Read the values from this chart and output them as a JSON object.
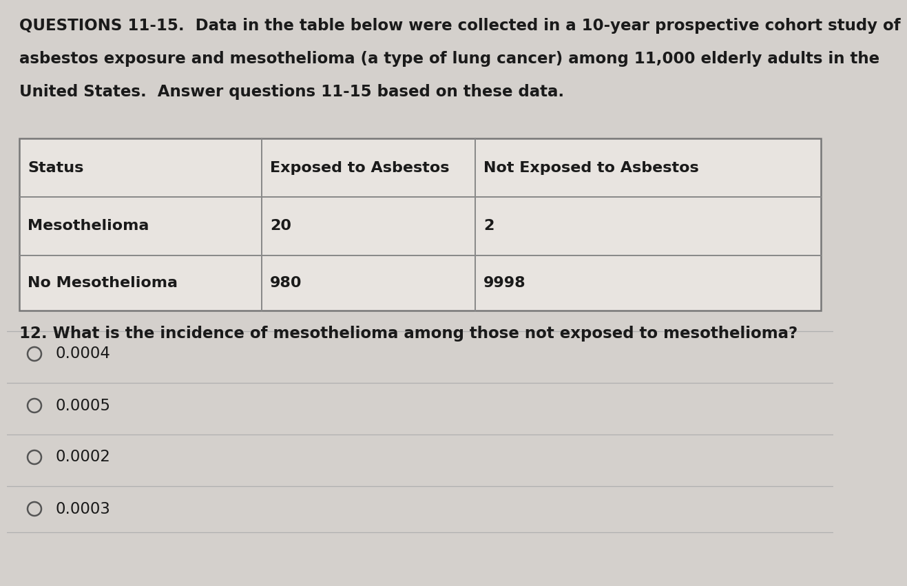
{
  "background_color": "#d4d0cc",
  "title_line1": "QUESTIONS 11-15.  Data in the table below were collected in a 10-year prospective cohort study of",
  "title_line2": "asbestos exposure and mesothelioma (a type of lung cancer) among 11,000 elderly adults in the",
  "title_line3": "United States.  Answer questions 11-15 based on these data.",
  "table_headers": [
    "Status",
    "Exposed to Asbestos",
    "Not Exposed to Asbestos"
  ],
  "table_rows": [
    [
      "Mesothelioma",
      "20",
      "2"
    ],
    [
      "No Mesothelioma",
      "980",
      "9998"
    ]
  ],
  "question": "12. What is the incidence of mesothelioma among those not exposed to mesothelioma?",
  "options": [
    "0.0004",
    "0.0005",
    "0.0002",
    "0.0003"
  ],
  "text_color": "#1a1a1a",
  "table_bg": "#e8e4e0",
  "border_color": "#888888",
  "line_color": "#aaaaaa",
  "font_size_title": 16.5,
  "font_size_table": 16.0,
  "font_size_question": 16.5,
  "font_size_options": 16.5,
  "title_bold": true,
  "table_text_bold": true
}
